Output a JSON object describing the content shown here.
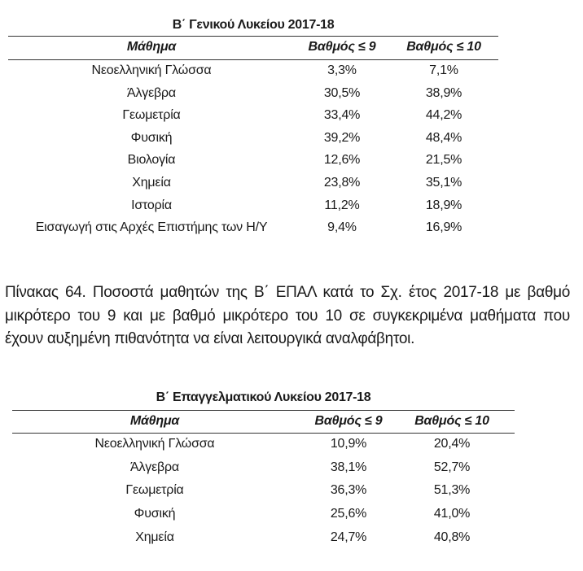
{
  "table1": {
    "title": "Β΄ Γενικού Λυκείου 2017-18",
    "headers": [
      "Μάθημα",
      "Βαθμός ≤ 9",
      "Βαθμός ≤ 10"
    ],
    "rows": [
      [
        "Νεοελληνική Γλώσσα",
        "3,3%",
        "7,1%"
      ],
      [
        "Άλγεβρα",
        "30,5%",
        "38,9%"
      ],
      [
        "Γεωμετρία",
        "33,4%",
        "44,2%"
      ],
      [
        "Φυσική",
        "39,2%",
        "48,4%"
      ],
      [
        "Βιολογία",
        "12,6%",
        "21,5%"
      ],
      [
        "Χημεία",
        "23,8%",
        "35,1%"
      ],
      [
        "Ιστορία",
        "11,2%",
        "18,9%"
      ],
      [
        "Εισαγωγή στις Αρχές Επιστήμης των Η/Υ",
        "9,4%",
        "16,9%"
      ]
    ]
  },
  "caption": "Πίνακας 64. Ποσοστά μαθητών της Β΄ ΕΠΑΛ κατά το Σχ. έτος 2017-18 με βαθμό μικρότερο του 9 και με βαθμό μικρότερο του 10 σε συγκεκριμένα μαθήματα που έχουν αυξημένη πιθανότητα να είναι λειτουργικά αναλφάβητοι.",
  "table2": {
    "title": "Β΄ Επαγγελματικού Λυκείου 2017-18",
    "headers": [
      "Μάθημα",
      "Βαθμός ≤ 9",
      "Βαθμός ≤ 10"
    ],
    "rows": [
      [
        "Νεοελληνική Γλώσσα",
        "10,9%",
        "20,4%"
      ],
      [
        "Άλγεβρα",
        "38,1%",
        "52,7%"
      ],
      [
        "Γεωμετρία",
        "36,3%",
        "51,3%"
      ],
      [
        "Φυσική",
        "25,6%",
        "41,0%"
      ],
      [
        "Χημεία",
        "24,7%",
        "40,8%"
      ]
    ]
  }
}
